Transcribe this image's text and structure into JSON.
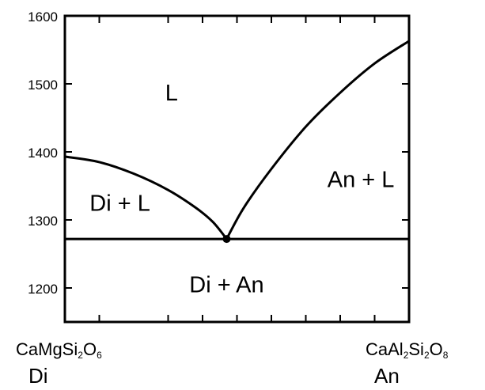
{
  "chart_data": {
    "type": "line",
    "title": "",
    "xlabel": "",
    "ylabel": "",
    "xlim": [
      0,
      100
    ],
    "ylim": [
      1150,
      1600
    ],
    "yticks": [
      1200,
      1300,
      1400,
      1500,
      1600
    ],
    "ytick_labels": [
      "1200",
      "1300",
      "1400",
      "1500",
      "1600"
    ],
    "xticks_minor": [
      10,
      30,
      40,
      50,
      60,
      70,
      80,
      90
    ],
    "grid": false,
    "series": [
      {
        "values": [
          [
            0,
            1393
          ],
          [
            10,
            1385
          ],
          [
            20,
            1368
          ],
          [
            30,
            1344
          ],
          [
            38,
            1318
          ],
          [
            43,
            1297
          ],
          [
            47,
            1272
          ]
        ]
      },
      {
        "values": [
          [
            47,
            1272
          ],
          [
            52,
            1318
          ],
          [
            60,
            1375
          ],
          [
            70,
            1437
          ],
          [
            80,
            1487
          ],
          [
            90,
            1530
          ],
          [
            100,
            1563
          ]
        ]
      },
      {
        "values": [
          [
            0,
            1272
          ],
          [
            100,
            1272
          ]
        ]
      }
    ],
    "eutectic_point": [
      47,
      1272
    ],
    "region_labels": [
      {
        "text": "L",
        "x": 31,
        "y": 1487
      },
      {
        "text": "An + L",
        "x": 86,
        "y": 1360
      },
      {
        "text": "Di + L",
        "x": 16,
        "y": 1325
      },
      {
        "text": "Di + An",
        "x": 47,
        "y": 1205
      }
    ],
    "endmembers": {
      "left": {
        "formula": "CaMgSi2O6",
        "name": "Di"
      },
      "right": {
        "formula": "CaAl2Si2O8",
        "name": "An"
      }
    }
  }
}
